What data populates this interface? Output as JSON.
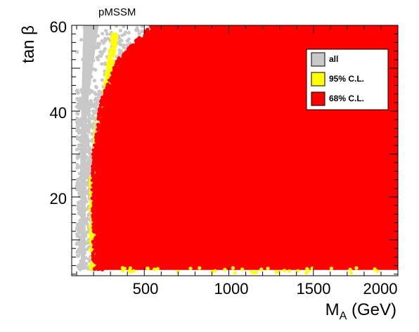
{
  "chart_data": {
    "type": "scatter",
    "title": "pMSSM",
    "xlabel": "M_A (GeV)",
    "ylabel": "tan β",
    "xlim": [
      90,
      2000
    ],
    "ylim": [
      2,
      60
    ],
    "x_ticks": [
      500,
      1000,
      1500,
      2000
    ],
    "y_ticks": [
      20,
      40,
      60
    ],
    "legend_position": "top-right",
    "series": [
      {
        "name": "all",
        "color": "#c8c8c8",
        "region": {
          "description_x_range": [
            90,
            2000
          ],
          "description_y_range": [
            2,
            60
          ],
          "boundary": [
            [
              100,
              2
            ],
            [
              100,
              60
            ],
            [
              2000,
              60
            ],
            [
              2000,
              2
            ]
          ]
        }
      },
      {
        "name": "95% C.L.",
        "color": "#ffff00",
        "region": {
          "boundary": [
            [
              185,
              3
            ],
            [
              185,
              25
            ],
            [
              200,
              42
            ],
            [
              260,
              55
            ],
            [
              330,
              60
            ],
            [
              2000,
              60
            ],
            [
              2000,
              3
            ]
          ]
        }
      },
      {
        "name": "68% C.L.",
        "color": "#ff0000",
        "region": {
          "boundary": [
            [
              220,
              3
            ],
            [
              200,
              10
            ],
            [
              210,
              30
            ],
            [
              270,
              45
            ],
            [
              380,
              55
            ],
            [
              560,
              60
            ],
            [
              2000,
              60
            ],
            [
              2000,
              3
            ]
          ]
        }
      }
    ]
  }
}
